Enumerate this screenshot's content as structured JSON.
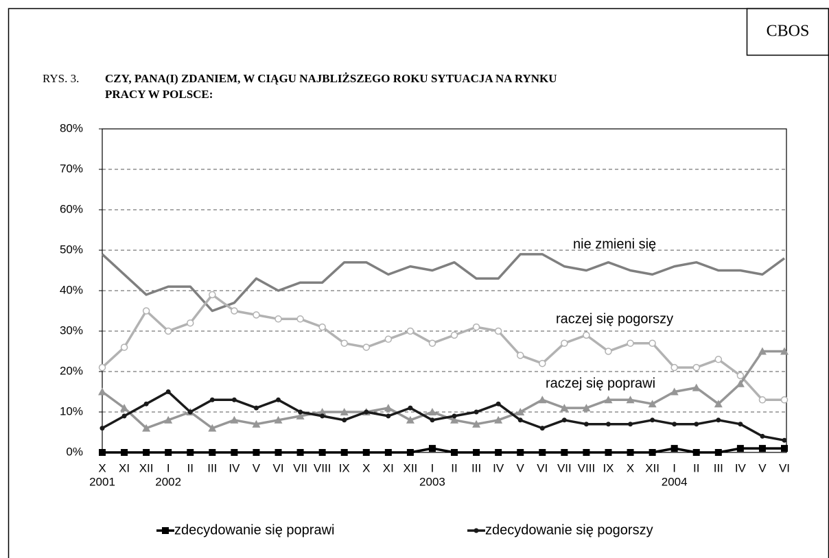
{
  "header": {
    "badge": "CBOS",
    "figure_label": "RYS. 3.",
    "title_lines": [
      "CZY, PANA(I) ZDANIEM, W CIĄGU NAJBLIŻSZEGO ROKU SYTUACJA NA RYNKU",
      "PRACY W POLSCE:"
    ]
  },
  "chart_data": {
    "type": "line",
    "categories": [
      "X",
      "XI",
      "XII",
      "I",
      "II",
      "III",
      "IV",
      "V",
      "VI",
      "VII",
      "VIII",
      "IX",
      "X",
      "XI",
      "XII",
      "I",
      "II",
      "III",
      "IV",
      "V",
      "VI",
      "VII",
      "VIII",
      "IX",
      "X",
      "XII",
      "I",
      "II",
      "III",
      "IV",
      "V",
      "VI"
    ],
    "year_labels": [
      "2001",
      null,
      null,
      "2002",
      null,
      null,
      null,
      null,
      null,
      null,
      null,
      null,
      null,
      null,
      null,
      "2003",
      null,
      null,
      null,
      null,
      null,
      null,
      null,
      null,
      null,
      null,
      "2004",
      null,
      null,
      null,
      null,
      null
    ],
    "ylim": [
      0,
      80
    ],
    "yticks": [
      {
        "value": 0,
        "label": "0%"
      },
      {
        "value": 10,
        "label": "10%"
      },
      {
        "value": 20,
        "label": "20%"
      },
      {
        "value": 30,
        "label": "30%"
      },
      {
        "value": 40,
        "label": "40%"
      },
      {
        "value": 50,
        "label": "50%"
      },
      {
        "value": 60,
        "label": "60%"
      },
      {
        "value": 70,
        "label": "70%"
      },
      {
        "value": 80,
        "label": "80%"
      }
    ],
    "grid": true,
    "series": [
      {
        "name": "zdecydowanie się poprawi",
        "color": "#000000",
        "marker": "square",
        "legend": true,
        "values": [
          0,
          0,
          0,
          0,
          0,
          0,
          0,
          0,
          0,
          0,
          0,
          0,
          0,
          0,
          0,
          1,
          0,
          0,
          0,
          0,
          0,
          0,
          0,
          0,
          0,
          0,
          1,
          0,
          0,
          1,
          1,
          1
        ]
      },
      {
        "name": "zdecydowanie się pogorszy",
        "color": "#1a1a1a",
        "marker": "dot",
        "legend": true,
        "values": [
          6,
          9,
          12,
          15,
          10,
          13,
          13,
          11,
          13,
          10,
          9,
          8,
          10,
          9,
          11,
          8,
          9,
          10,
          12,
          8,
          6,
          8,
          7,
          7,
          7,
          8,
          7,
          7,
          8,
          7,
          4,
          3
        ]
      },
      {
        "name": "nie zmieni się",
        "color": "#7f7f7f",
        "marker": "none",
        "legend": false,
        "values": [
          49,
          44,
          39,
          41,
          41,
          35,
          37,
          43,
          40,
          42,
          42,
          47,
          47,
          44,
          46,
          45,
          47,
          43,
          43,
          49,
          49,
          46,
          45,
          47,
          45,
          44,
          46,
          47,
          45,
          45,
          44,
          48
        ]
      },
      {
        "name": "raczej się pogorszy",
        "color": "#b2b2b2",
        "marker": "circle",
        "legend": false,
        "values": [
          21,
          26,
          35,
          30,
          32,
          39,
          35,
          34,
          33,
          33,
          31,
          27,
          26,
          28,
          30,
          27,
          29,
          31,
          30,
          24,
          22,
          27,
          29,
          25,
          27,
          27,
          21,
          21,
          23,
          19,
          13,
          13
        ]
      },
      {
        "name": "raczej się poprawi",
        "color": "#969696",
        "marker": "triangle",
        "legend": false,
        "values": [
          15,
          11,
          6,
          8,
          10,
          6,
          8,
          7,
          8,
          9,
          10,
          10,
          10,
          11,
          8,
          10,
          8,
          7,
          8,
          10,
          13,
          11,
          11,
          13,
          13,
          12,
          15,
          16,
          12,
          17,
          25,
          25
        ]
      }
    ]
  }
}
